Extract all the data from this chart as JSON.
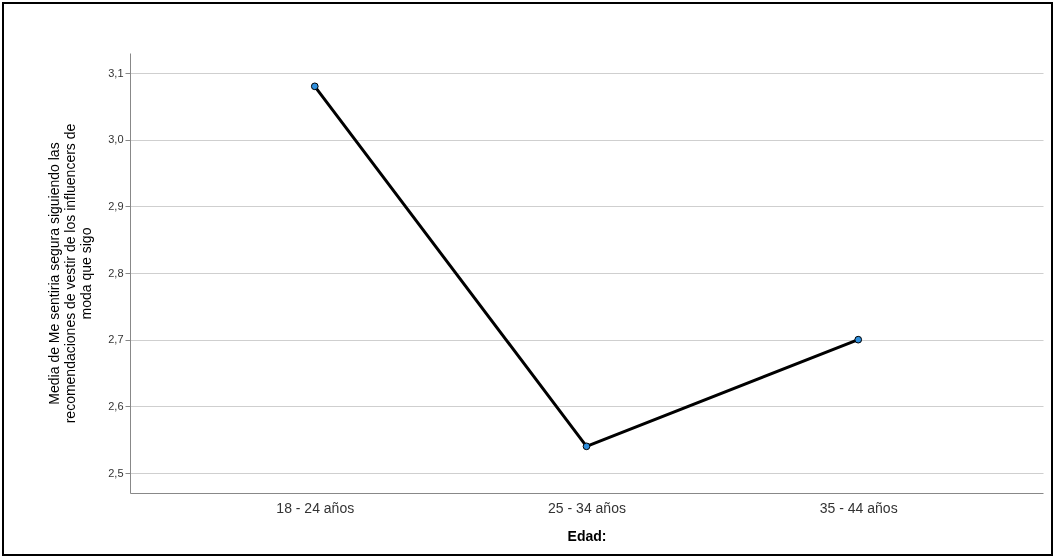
{
  "chart_data": {
    "type": "line",
    "xlabel": "Edad:",
    "ylabel": "Media de Me sentiria segura siguiendo las recomendaciones de vestir de los influencers de moda que sigo",
    "categories": [
      "18 - 24 años",
      "25 - 34 años",
      "35 - 44 años"
    ],
    "series": [
      {
        "color": "#000000",
        "values": [
          3.08,
          2.54,
          2.7
        ]
      }
    ],
    "ylim": [
      2.47,
      3.13
    ],
    "yticks": [
      {
        "value": 2.5,
        "label": "2,5"
      },
      {
        "value": 2.6,
        "label": "2,6"
      },
      {
        "value": 2.7,
        "label": "2,7"
      },
      {
        "value": 2.8,
        "label": "2,8"
      },
      {
        "value": 2.9,
        "label": "2,9"
      },
      {
        "value": 3.0,
        "label": "3,0"
      },
      {
        "value": 3.1,
        "label": "3,1"
      }
    ],
    "grid": "y",
    "marker": "circle",
    "line_style": "solid"
  }
}
